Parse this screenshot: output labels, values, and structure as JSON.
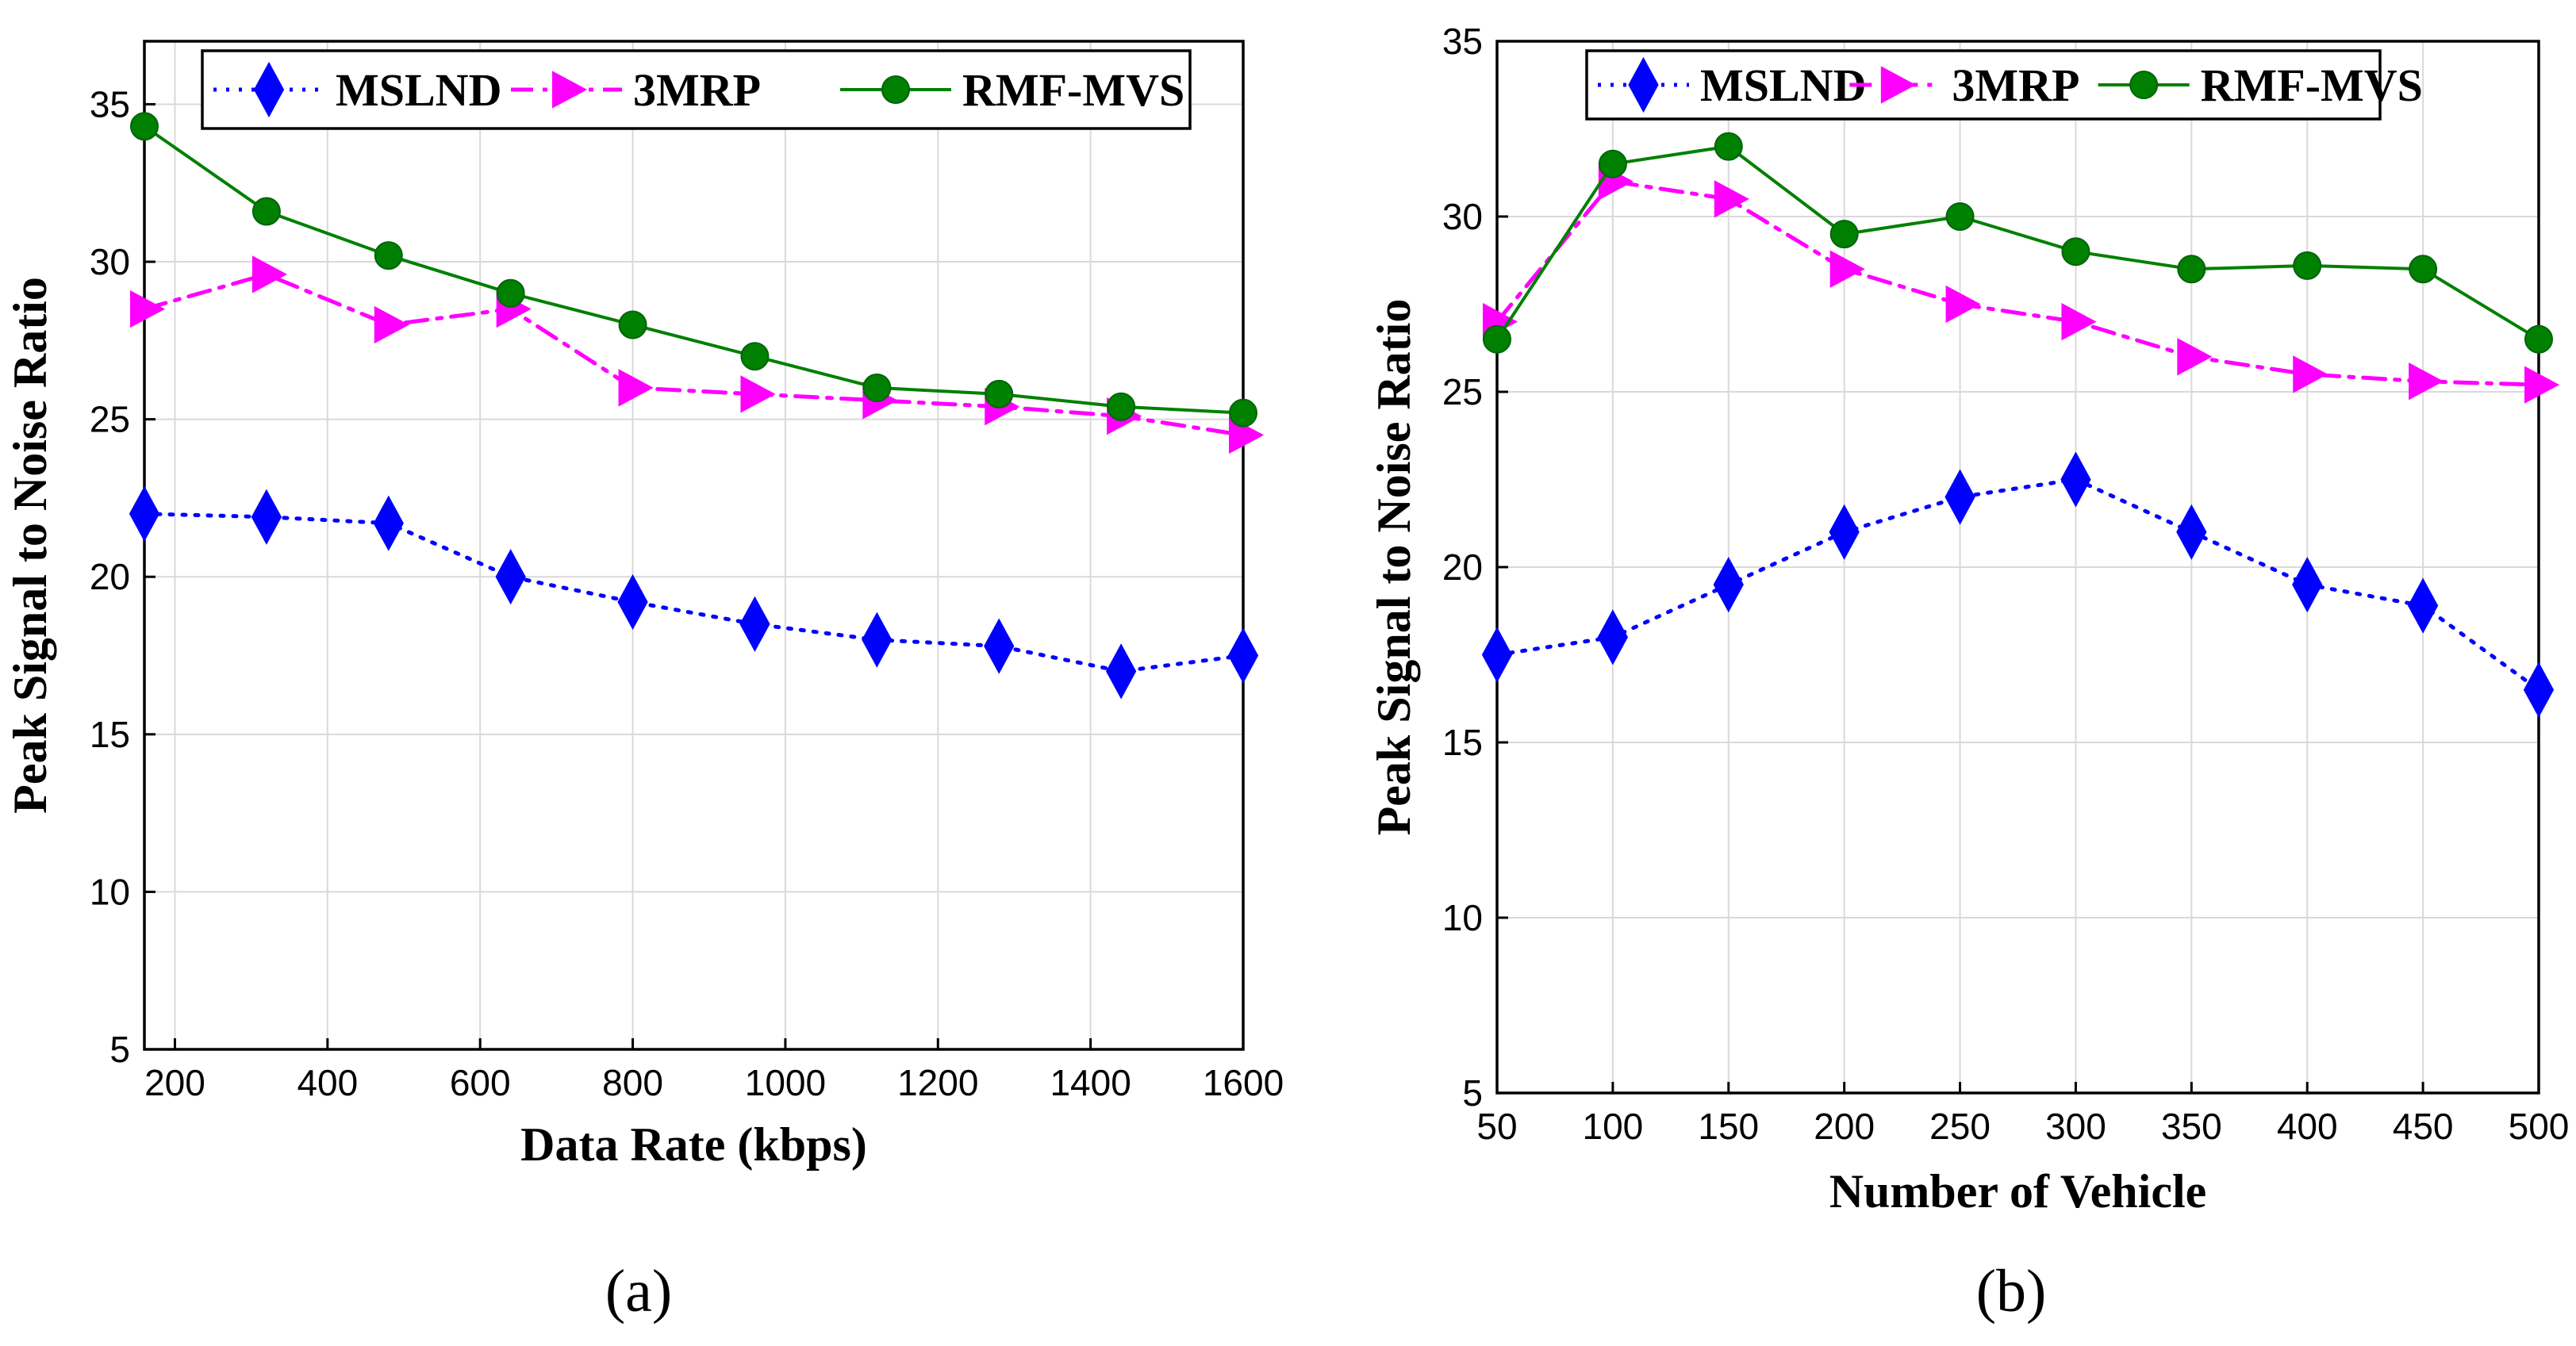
{
  "chart_data": [
    {
      "type": "line",
      "caption": "(a)",
      "xlabel": "Data Rate (kbps)",
      "ylabel": "Peak Signal to Noise Ratio",
      "xlim": [
        160,
        1600
      ],
      "ylim": [
        5,
        37
      ],
      "xticks": [
        200,
        400,
        600,
        800,
        1000,
        1200,
        1400,
        1600
      ],
      "yticks": [
        5,
        10,
        15,
        20,
        25,
        30,
        35
      ],
      "grid": true,
      "legend_position": "top",
      "x": [
        160,
        320,
        480,
        640,
        800,
        960,
        1120,
        1280,
        1440,
        1600
      ],
      "series": [
        {
          "name": "MSLND",
          "color": "#0000ff",
          "marker": "diamond",
          "dash": "dotted",
          "values": [
            22.0,
            21.9,
            21.7,
            20.0,
            19.2,
            18.5,
            18.0,
            17.8,
            17.0,
            17.5
          ]
        },
        {
          "name": "3MRP",
          "color": "#ff00ff",
          "marker": "triangle-right",
          "dash": "dashdot",
          "values": [
            28.5,
            29.6,
            28.0,
            28.5,
            26.0,
            25.8,
            25.6,
            25.4,
            25.1,
            24.5
          ]
        },
        {
          "name": "RMF-MVS",
          "color": "#008000",
          "marker": "circle",
          "dash": "solid",
          "values": [
            34.3,
            31.6,
            30.2,
            29.0,
            28.0,
            27.0,
            26.0,
            25.8,
            25.4,
            25.2
          ]
        }
      ]
    },
    {
      "type": "line",
      "caption": "(b)",
      "xlabel": "Number of Vehicle",
      "ylabel": "Peak Signal to Noise Ratio",
      "xlim": [
        50,
        500
      ],
      "ylim": [
        5,
        35
      ],
      "xticks": [
        50,
        100,
        150,
        200,
        250,
        300,
        350,
        400,
        450,
        500
      ],
      "yticks": [
        5,
        10,
        15,
        20,
        25,
        30,
        35
      ],
      "grid": true,
      "legend_position": "top",
      "x": [
        50,
        100,
        150,
        200,
        250,
        300,
        350,
        400,
        450,
        500
      ],
      "series": [
        {
          "name": "MSLND",
          "color": "#0000ff",
          "marker": "diamond",
          "dash": "dotted",
          "values": [
            17.5,
            18.0,
            19.5,
            21.0,
            22.0,
            22.5,
            21.0,
            19.5,
            18.9,
            16.5
          ]
        },
        {
          "name": "3MRP",
          "color": "#ff00ff",
          "marker": "triangle-right",
          "dash": "dashdot",
          "values": [
            27.0,
            31.0,
            30.5,
            28.5,
            27.5,
            27.0,
            26.0,
            25.5,
            25.3,
            25.2
          ]
        },
        {
          "name": "RMF-MVS",
          "color": "#008000",
          "marker": "circle",
          "dash": "solid",
          "values": [
            26.5,
            31.5,
            32.0,
            29.5,
            30.0,
            29.0,
            28.5,
            28.6,
            28.5,
            26.5
          ]
        }
      ]
    }
  ]
}
